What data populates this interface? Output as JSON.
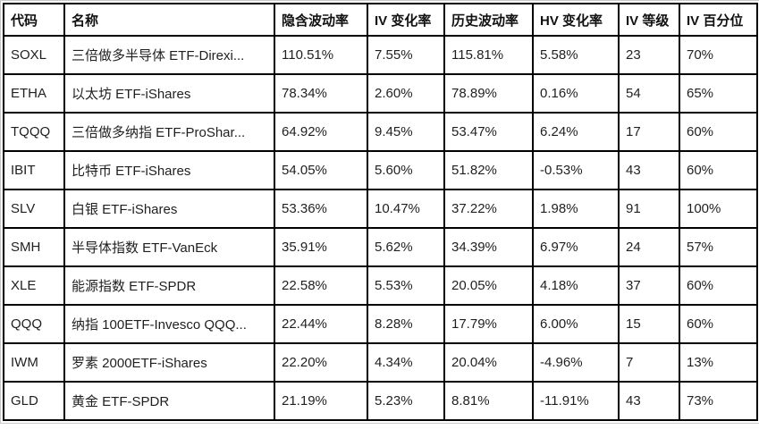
{
  "table": {
    "columns": [
      {
        "key": "code",
        "label": "代码"
      },
      {
        "key": "name",
        "label": "名称"
      },
      {
        "key": "implied-volatility",
        "label": "隐含波动率"
      },
      {
        "key": "iv-change",
        "label": "IV 变化率"
      },
      {
        "key": "historical-volatility",
        "label": "历史波动率"
      },
      {
        "key": "hv-change",
        "label": "HV 变化率"
      },
      {
        "key": "iv-rank",
        "label": "IV 等级"
      },
      {
        "key": "iv-percentile",
        "label": "IV 百分位"
      }
    ],
    "rows": [
      [
        "SOXL",
        "三倍做多半导体 ETF-Direxi...",
        "110.51%",
        "7.55%",
        "115.81%",
        "5.58%",
        "23",
        "70%"
      ],
      [
        "ETHA",
        "以太坊 ETF-iShares",
        "78.34%",
        "2.60%",
        "78.89%",
        "0.16%",
        "54",
        "65%"
      ],
      [
        "TQQQ",
        "三倍做多纳指 ETF-ProShar...",
        "64.92%",
        "9.45%",
        "53.47%",
        "6.24%",
        "17",
        "60%"
      ],
      [
        "IBIT",
        "比特币 ETF-iShares",
        "54.05%",
        "5.60%",
        "51.82%",
        "-0.53%",
        "43",
        "60%"
      ],
      [
        "SLV",
        "白银 ETF-iShares",
        "53.36%",
        "10.47%",
        "37.22%",
        "1.98%",
        "91",
        "100%"
      ],
      [
        "SMH",
        "半导体指数 ETF-VanEck",
        "35.91%",
        "5.62%",
        "34.39%",
        "6.97%",
        "24",
        "57%"
      ],
      [
        "XLE",
        "能源指数 ETF-SPDR",
        "22.58%",
        "5.53%",
        "20.05%",
        "4.18%",
        "37",
        "60%"
      ],
      [
        "QQQ",
        "纳指 100ETF-Invesco QQQ...",
        "22.44%",
        "8.28%",
        "17.79%",
        "6.00%",
        "15",
        "60%"
      ],
      [
        "IWM",
        "罗素 2000ETF-iShares",
        "22.20%",
        "4.34%",
        "20.04%",
        "-4.96%",
        "7",
        "13%"
      ],
      [
        "GLD",
        "黄金 ETF-SPDR",
        "21.19%",
        "5.23%",
        "8.81%",
        "-11.91%",
        "43",
        "73%"
      ]
    ]
  },
  "colors": {
    "grid_border": "#000000",
    "outer_outline": "#c9c9c9",
    "text": "#1f1f1f",
    "background": "#ffffff"
  }
}
